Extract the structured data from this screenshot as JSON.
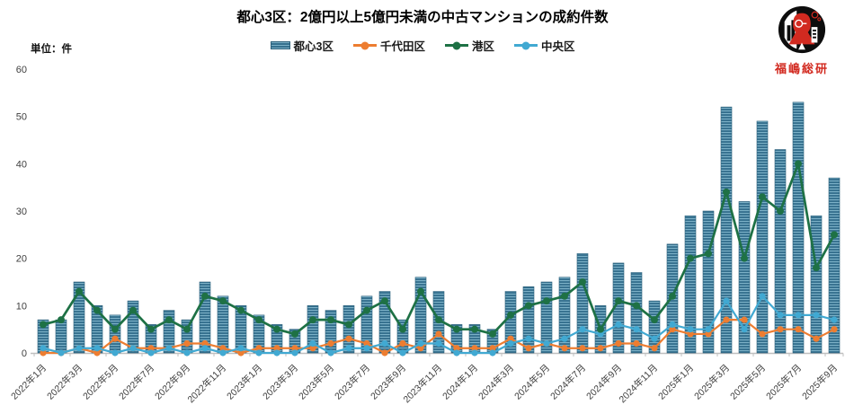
{
  "title": "都心3区：2億円以上5億円未満の中古マンションの成約件数",
  "unit_label": "単位：件",
  "logo": {
    "text": "福嶋総研"
  },
  "colors": {
    "bar_stripe_dark": "#35708e",
    "bar_stripe_light": "#7cb1c7",
    "bar_border": "#2b5f7a",
    "chiyoda_orange": "#ED7D31",
    "minato_green": "#1E7145",
    "chuo_blue": "#41A9D2",
    "axis_gray": "#bfbfbf",
    "tick_text": "#404040",
    "logo_red": "#d22a20"
  },
  "legend": [
    {
      "label": "都心3区",
      "type": "bar",
      "color": "#35708e"
    },
    {
      "label": "千代田区",
      "type": "line",
      "color": "#ED7D31"
    },
    {
      "label": "港区",
      "type": "line",
      "color": "#1E7145"
    },
    {
      "label": "中央区",
      "type": "line",
      "color": "#41A9D2"
    }
  ],
  "chart_data": {
    "type": "bar",
    "subtype": "bar+line combo",
    "title": "都心3区：2億円以上5億円未満の中古マンションの成約件数",
    "ylabel": "単位：件",
    "xlabel": "",
    "ylim": [
      0,
      60
    ],
    "yticks": [
      0,
      10,
      20,
      30,
      40,
      50,
      60
    ],
    "grid": false,
    "legend_position": "top",
    "x": [
      "2022年1月",
      "2022年2月",
      "2022年3月",
      "2022年4月",
      "2022年5月",
      "2022年6月",
      "2022年7月",
      "2022年8月",
      "2022年9月",
      "2022年10月",
      "2022年11月",
      "2022年12月",
      "2023年1月",
      "2023年2月",
      "2023年3月",
      "2023年4月",
      "2023年5月",
      "2023年6月",
      "2023年7月",
      "2023年8月",
      "2023年9月",
      "2023年10月",
      "2023年11月",
      "2023年12月",
      "2024年1月",
      "2024年2月",
      "2024年3月",
      "2024年4月",
      "2024年5月",
      "2024年6月",
      "2024年7月",
      "2024年8月",
      "2024年9月",
      "2024年10月",
      "2024年11月",
      "2024年12月",
      "2025年1月",
      "2025年2月",
      "2025年3月",
      "2025年4月",
      "2025年5月",
      "2025年6月",
      "2025年7月",
      "2025年8月",
      "2025年9月"
    ],
    "x_tick_labels": [
      "2022年1月",
      "2022年3月",
      "2022年5月",
      "2022年7月",
      "2022年9月",
      "2022年11月",
      "2023年1月",
      "2023年3月",
      "2023年5月",
      "2023年7月",
      "2023年9月",
      "2023年11月",
      "2024年1月",
      "2024年3月",
      "2024年5月",
      "2024年7月",
      "2024年9月",
      "2024年11月",
      "2025年1月",
      "2025年3月",
      "2025年5月",
      "2025年7月",
      "2025年9月"
    ],
    "series": [
      {
        "name": "都心3区",
        "type": "bar",
        "color": "#35708e",
        "values": [
          7,
          7,
          15,
          10,
          8,
          11,
          6,
          9,
          7,
          15,
          12,
          10,
          8,
          6,
          5,
          10,
          9,
          10,
          12,
          13,
          7,
          16,
          13,
          6,
          6,
          5,
          13,
          14,
          15,
          16,
          21,
          10,
          19,
          17,
          11,
          23,
          29,
          30,
          52,
          32,
          49,
          43,
          53,
          29,
          37
        ]
      },
      {
        "name": "千代田区",
        "type": "line",
        "color": "#ED7D31",
        "values": [
          0,
          0,
          1,
          0,
          3,
          1,
          1,
          1,
          2,
          2,
          1,
          0,
          1,
          1,
          1,
          1,
          2,
          3,
          2,
          0,
          2,
          1,
          4,
          1,
          1,
          1,
          3,
          1,
          2,
          1,
          1,
          1,
          2,
          2,
          1,
          5,
          4,
          4,
          7,
          7,
          4,
          5,
          5,
          3,
          5
        ]
      },
      {
        "name": "港区",
        "type": "line",
        "color": "#1E7145",
        "values": [
          6,
          7,
          13,
          9,
          5,
          9,
          5,
          7,
          5,
          12,
          11,
          9,
          7,
          5,
          4,
          7,
          7,
          6,
          9,
          11,
          5,
          13,
          7,
          5,
          5,
          4,
          8,
          10,
          11,
          12,
          15,
          5,
          11,
          10,
          7,
          12,
          20,
          21,
          34,
          20,
          33,
          30,
          40,
          18,
          25
        ]
      },
      {
        "name": "中央区",
        "type": "line",
        "color": "#41A9D2",
        "values": [
          1,
          0,
          1,
          1,
          0,
          1,
          0,
          1,
          0,
          1,
          0,
          1,
          0,
          0,
          0,
          2,
          0,
          1,
          1,
          2,
          0,
          2,
          2,
          0,
          0,
          0,
          2,
          3,
          2,
          3,
          5,
          4,
          6,
          5,
          3,
          6,
          5,
          5,
          11,
          5,
          12,
          8,
          8,
          8,
          7
        ]
      }
    ]
  }
}
